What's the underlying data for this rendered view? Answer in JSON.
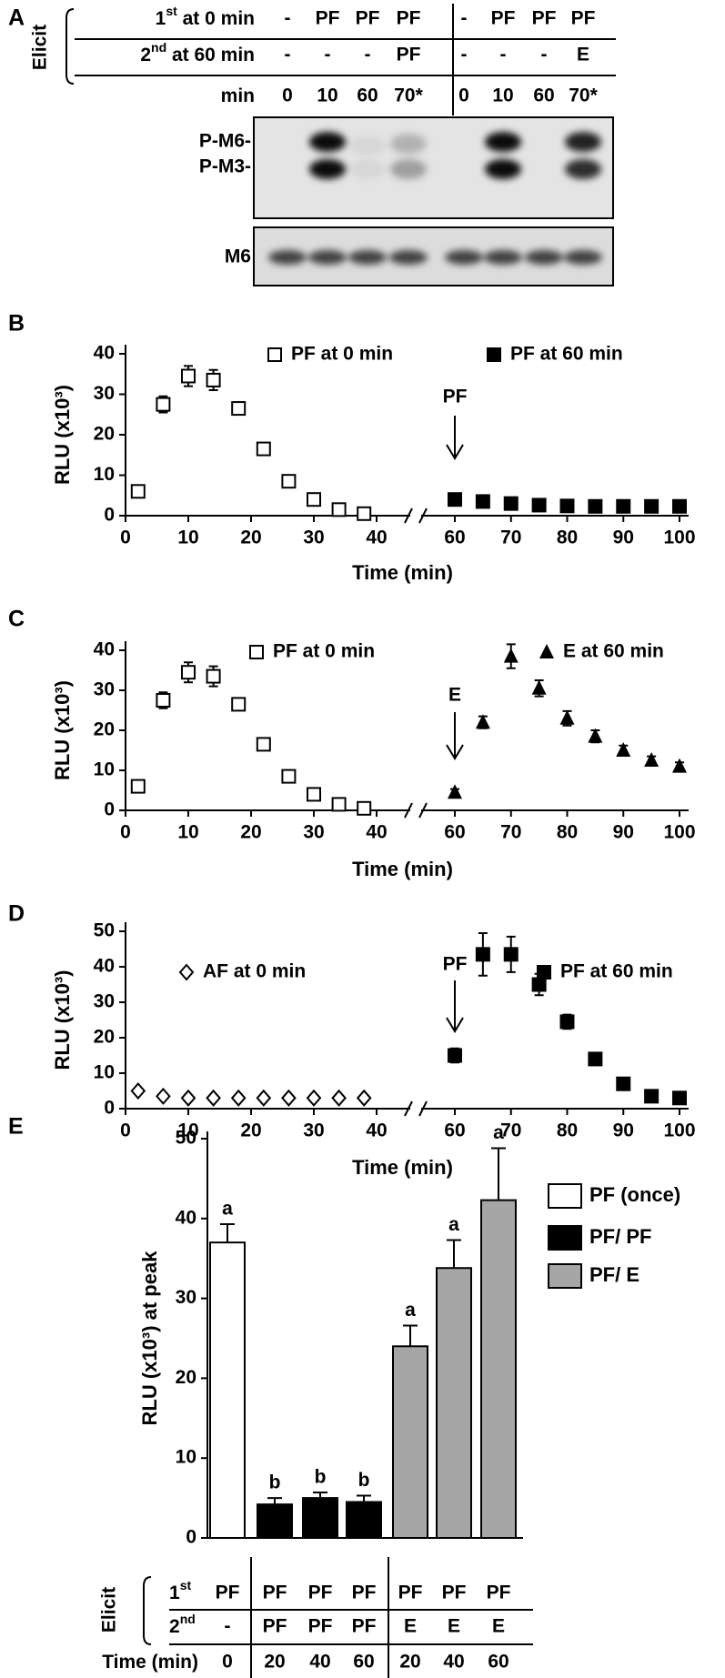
{
  "panel_a": {
    "label": "A",
    "elicit": "Elicit",
    "rows": [
      {
        "label": [
          "1",
          "st",
          " at 0 min"
        ],
        "cells": [
          "-",
          "PF",
          "PF",
          "PF",
          "-",
          "PF",
          "PF",
          "PF"
        ]
      },
      {
        "label": [
          "2",
          "nd",
          " at 60 min"
        ],
        "cells": [
          "-",
          "-",
          "-",
          "PF",
          "-",
          "-",
          "-",
          "E"
        ]
      },
      {
        "label": [
          "min"
        ],
        "cells": [
          "0",
          "10",
          "60",
          "70*",
          "0",
          "10",
          "60",
          "70*"
        ]
      }
    ],
    "blot_labels": [
      "P-M6-",
      "P-M3-"
    ],
    "loading_label": "M6"
  },
  "chart_data": [
    {
      "label": "B",
      "type": "scatter",
      "xlabel": "Time (min)",
      "ylabel": "RLU (x10³)",
      "xlim": [
        0,
        100
      ],
      "xbreak": [
        40,
        60
      ],
      "xticks": [
        0,
        10,
        20,
        30,
        40,
        60,
        70,
        80,
        90,
        100
      ],
      "ylim": [
        0,
        40
      ],
      "yticks": [
        0,
        10,
        20,
        30,
        40
      ],
      "series": [
        {
          "name": "PF at 0 min",
          "marker": "open-square",
          "color": "#000000",
          "x": [
            2,
            6,
            10,
            14,
            18,
            22,
            26,
            30,
            34,
            38
          ],
          "values": [
            6,
            27.5,
            34.5,
            33.5,
            26.5,
            16.5,
            8.5,
            4,
            1.5,
            0.5
          ],
          "errors": [
            0.8,
            2,
            2.5,
            2.5,
            1.5,
            0.8,
            0.6,
            0.4,
            0.3,
            0.2
          ]
        },
        {
          "name": "PF at 60 min",
          "marker": "square",
          "color": "#000000",
          "x": [
            60,
            65,
            70,
            75,
            80,
            85,
            90,
            95,
            100
          ],
          "values": [
            4,
            3.5,
            3,
            2.6,
            2.4,
            2.3,
            2.3,
            2.3,
            2.3
          ],
          "errors": [
            0.8,
            0.5,
            0.4,
            0.3,
            0.3,
            0.3,
            0.3,
            0.3,
            0.3
          ]
        }
      ],
      "annotations": [
        {
          "text": "PF",
          "x": 60
        }
      ]
    },
    {
      "label": "C",
      "type": "scatter",
      "xlabel": "Time (min)",
      "ylabel": "RLU (x10³)",
      "xlim": [
        0,
        100
      ],
      "xbreak": [
        40,
        60
      ],
      "xticks": [
        0,
        10,
        20,
        30,
        40,
        60,
        70,
        80,
        90,
        100
      ],
      "ylim": [
        0,
        40
      ],
      "yticks": [
        0,
        10,
        20,
        30,
        40
      ],
      "series": [
        {
          "name": "PF at 0 min",
          "marker": "open-square",
          "color": "#000000",
          "x": [
            2,
            6,
            10,
            14,
            18,
            22,
            26,
            30,
            34,
            38
          ],
          "values": [
            6,
            27.5,
            34.5,
            33.5,
            26.5,
            16.5,
            8.5,
            4,
            1.5,
            0.5
          ],
          "errors": [
            0.8,
            2,
            2.5,
            2.5,
            1.5,
            0.8,
            0.6,
            0.4,
            0.3,
            0.2
          ]
        },
        {
          "name": "E at 60 min",
          "marker": "triangle",
          "color": "#000000",
          "x": [
            60,
            65,
            70,
            75,
            80,
            85,
            90,
            95,
            100
          ],
          "values": [
            4.5,
            22,
            38.5,
            30.5,
            23,
            18.5,
            15,
            12.5,
            11
          ],
          "errors": [
            0.8,
            1.5,
            3,
            2,
            1.8,
            1.5,
            1.2,
            1,
            1
          ]
        }
      ],
      "annotations": [
        {
          "text": "E",
          "x": 60
        }
      ]
    },
    {
      "label": "D",
      "type": "scatter",
      "xlabel": "Time (min)",
      "ylabel": "RLU (x10³)",
      "xlim": [
        0,
        100
      ],
      "xbreak": [
        40,
        60
      ],
      "xticks": [
        0,
        10,
        20,
        30,
        40,
        60,
        70,
        80,
        90,
        100
      ],
      "ylim": [
        0,
        50
      ],
      "yticks": [
        0,
        10,
        20,
        30,
        40,
        50
      ],
      "series": [
        {
          "name": "AF at 0 min",
          "marker": "open-diamond",
          "color": "#000000",
          "x": [
            2,
            6,
            10,
            14,
            18,
            22,
            26,
            30,
            34,
            38
          ],
          "values": [
            5,
            3.5,
            3,
            3,
            3,
            3,
            3,
            3,
            3,
            3
          ],
          "errors": [
            0.4,
            0.3,
            0.3,
            0.3,
            0.3,
            0.3,
            0.3,
            0.3,
            0.3,
            0.3
          ]
        },
        {
          "name": "PF at 60 min",
          "marker": "square",
          "color": "#000000",
          "x": [
            60,
            65,
            70,
            75,
            80,
            85,
            90,
            95,
            100
          ],
          "values": [
            15,
            43.5,
            43.5,
            35,
            24.5,
            14,
            7,
            3.5,
            3
          ],
          "errors": [
            2,
            6,
            5,
            3,
            2,
            0.8,
            0.6,
            0.4,
            0.3
          ]
        }
      ],
      "annotations": [
        {
          "text": "PF",
          "x": 60
        }
      ]
    },
    {
      "label": "E",
      "type": "bar",
      "ylabel": "RLU (x10³) at peak",
      "ylim": [
        0,
        50
      ],
      "yticks": [
        0,
        10,
        20,
        30,
        40,
        50
      ],
      "series": [
        {
          "name": "PF (once)",
          "color": "#ffffff",
          "values": [
            37,
            null,
            null,
            null,
            null,
            null,
            null
          ],
          "errors": [
            2.3,
            null,
            null,
            null,
            null,
            null,
            null
          ]
        },
        {
          "name": "PF/ PF",
          "color": "#000000",
          "values": [
            null,
            4.2,
            5,
            4.5,
            null,
            null,
            null
          ],
          "errors": [
            null,
            0.8,
            0.7,
            0.8,
            null,
            null,
            null
          ]
        },
        {
          "name": "PF/ E",
          "color": "#a6a6a6",
          "values": [
            null,
            null,
            null,
            null,
            24,
            33.8,
            42.3
          ],
          "errors": [
            null,
            null,
            null,
            null,
            2.6,
            3.5,
            6.5
          ]
        }
      ],
      "letters": [
        "a",
        "b",
        "b",
        "b",
        "a",
        "a",
        "a"
      ],
      "table": {
        "elicit": "Elicit",
        "rows": [
          {
            "label": [
              "1",
              "st"
            ],
            "cells": [
              "PF",
              "PF",
              "PF",
              "PF",
              "PF",
              "PF",
              "PF"
            ]
          },
          {
            "label": [
              "2",
              "nd"
            ],
            "cells": [
              "-",
              "PF",
              "PF",
              "PF",
              "E",
              "E",
              "E"
            ]
          },
          {
            "label": [
              "Time (min)"
            ],
            "cells": [
              0,
              20,
              40,
              60,
              20,
              40,
              60
            ]
          }
        ]
      }
    }
  ]
}
